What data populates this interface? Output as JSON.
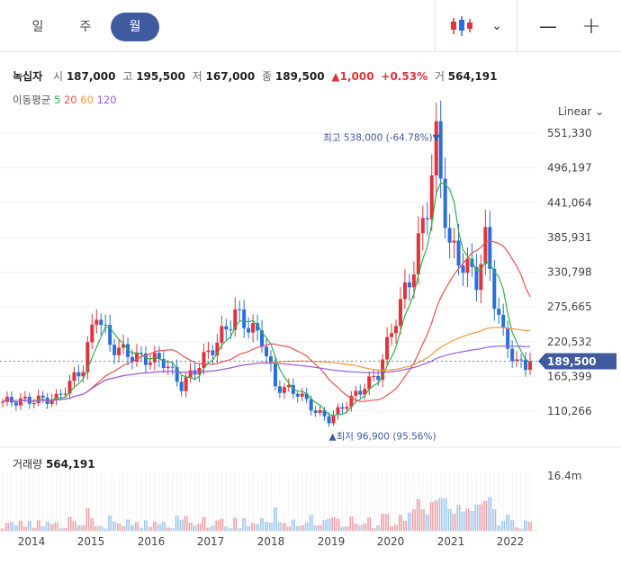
{
  "tabs": [
    {
      "label": "일",
      "active": false
    },
    {
      "label": "주",
      "active": false
    },
    {
      "label": "월",
      "active": true
    }
  ],
  "controls": {
    "dropdown": "⌄",
    "minus": "—",
    "plus": "+"
  },
  "stock": {
    "name": "녹십자",
    "open_label": "시",
    "open": "187,000",
    "high_label": "고",
    "high": "195,500",
    "low_label": "저",
    "low": "167,000",
    "close_label": "종",
    "close": "189,500",
    "change": "▲1,000",
    "change_pct": "+0.53%",
    "volume_label": "거",
    "volume": "564,191"
  },
  "moving_average": {
    "label": "이동평균",
    "periods": [
      {
        "value": "5",
        "color": "#32b24a"
      },
      {
        "value": "20",
        "color": "#f05050"
      },
      {
        "value": "60",
        "color": "#f29a3a"
      },
      {
        "value": "120",
        "color": "#9b5de5"
      }
    ]
  },
  "scale_mode": "Linear",
  "volume_panel": {
    "label": "거래량",
    "value": "564,191",
    "axis_label": "16.4m"
  },
  "chart_data": {
    "type": "candlestick",
    "y_ticks": [
      "551,330",
      "496,197",
      "441,064",
      "385,931",
      "330,798",
      "275,665",
      "220,532",
      "165,399",
      "110,266"
    ],
    "y_tick_values": [
      551330,
      496197,
      441064,
      385931,
      330798,
      275665,
      220532,
      165399,
      110266
    ],
    "x_ticks": [
      "2014",
      "2015",
      "2016",
      "2017",
      "2018",
      "2019",
      "2020",
      "2021",
      "2022"
    ],
    "current_price": {
      "label": "189,500",
      "value": 189500
    },
    "annotations": {
      "high": {
        "text": "최고 538,000 (-64.78%)▼",
        "value": 538000
      },
      "low": {
        "text": "▲최저 96,900 (95.56%)",
        "value": 96900
      }
    },
    "colors": {
      "up": "#e0343c",
      "down": "#2a6fdb",
      "up_volume": "#f0a0a4",
      "down_volume": "#9ec8ee",
      "price_badge": "#3f5a9e"
    }
  }
}
